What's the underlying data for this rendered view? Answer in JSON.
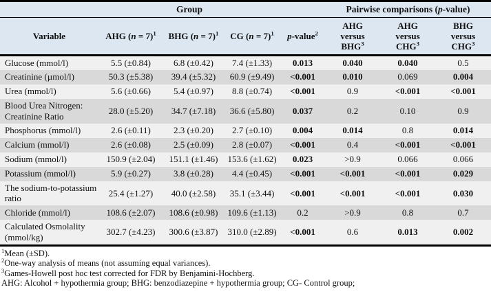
{
  "table": {
    "colors": {
      "header_bg": "#dce7f2",
      "row_light": "#f0f0f0",
      "row_dark": "#d9d9d9",
      "border": "#000000"
    },
    "header": {
      "variable_label": "Variable",
      "group_label": "Group",
      "pairwise_label": {
        "pre": "Pairwise comparisons (",
        "italic": "p",
        "post": "-value)"
      },
      "group_columns": [
        {
          "name": "AHG",
          "n_italic": "n",
          "n_eq": " = 7",
          "sup": "1"
        },
        {
          "name": "BHG",
          "n_italic": "n",
          "n_eq": " = 7",
          "sup": "1"
        },
        {
          "name": "CG",
          "n_italic": "n",
          "n_eq": " = 7",
          "sup": "1"
        }
      ],
      "p_column": {
        "italic": "p",
        "rest": "-value",
        "sup": "2"
      },
      "pairwise_columns": [
        {
          "top": "AHG",
          "mid": "versus",
          "bottom": "BHG",
          "sup": "3"
        },
        {
          "top": "AHG",
          "mid": "versus",
          "bottom": "CHG",
          "sup": "3"
        },
        {
          "top": "BHG",
          "mid": "versus",
          "bottom": "CHG",
          "sup": "3"
        }
      ]
    },
    "rows": [
      {
        "variable": "Glucose (mmol/l)",
        "ahg": "5.5 (±0.84)",
        "bhg": "6.8 (±0.42)",
        "cg": "7.4 (±1.33)",
        "p": {
          "text": "0.013",
          "bold": true
        },
        "ahg_vs_bhg": {
          "text": "0.040",
          "bold": true
        },
        "ahg_vs_chg": {
          "text": "0.040",
          "bold": true
        },
        "bhg_vs_chg": {
          "text": "0.5",
          "bold": false
        }
      },
      {
        "variable": "Creatinine (µmol/l)",
        "ahg": "50.3 (±5.38)",
        "bhg": "39.4 (±5.32)",
        "cg": "60.9 (±9.49)",
        "p": {
          "text": "<0.001",
          "bold": true
        },
        "ahg_vs_bhg": {
          "text": "0.010",
          "bold": true
        },
        "ahg_vs_chg": {
          "text": "0.069",
          "bold": false
        },
        "bhg_vs_chg": {
          "text": "0.004",
          "bold": true
        }
      },
      {
        "variable": "Urea (mmol/l)",
        "ahg": "5.6 (±0.66)",
        "bhg": "5.4 (±0.97)",
        "cg": "8.8 (±0.74)",
        "p": {
          "text": "<0.001",
          "bold": true
        },
        "ahg_vs_bhg": {
          "text": "0.9",
          "bold": false
        },
        "ahg_vs_chg": {
          "text": "<0.001",
          "bold": true
        },
        "bhg_vs_chg": {
          "text": "<0.001",
          "bold": true
        }
      },
      {
        "variable": "Blood Urea Nitrogen: Creatinine Ratio",
        "ahg": "28.0 (±5.20)",
        "bhg": "34.7 (±7.18)",
        "cg": "36.6 (±5.80)",
        "p": {
          "text": "0.037",
          "bold": true
        },
        "ahg_vs_bhg": {
          "text": "0.2",
          "bold": false
        },
        "ahg_vs_chg": {
          "text": "0.10",
          "bold": false
        },
        "bhg_vs_chg": {
          "text": "0.9",
          "bold": false
        }
      },
      {
        "variable": "Phosphorus (mmol/l)",
        "ahg": "2.6 (±0.11)",
        "bhg": "2.3 (±0.20)",
        "cg": "2.7 (±0.10)",
        "p": {
          "text": "0.004",
          "bold": true
        },
        "ahg_vs_bhg": {
          "text": "0.014",
          "bold": true
        },
        "ahg_vs_chg": {
          "text": "0.8",
          "bold": false
        },
        "bhg_vs_chg": {
          "text": "0.014",
          "bold": true
        }
      },
      {
        "variable": "Calcium (mmol/l)",
        "ahg": "2.6 (±0.08)",
        "bhg": "2.5 (±0.09)",
        "cg": "2.8 (±0.07)",
        "p": {
          "text": "<0.001",
          "bold": true
        },
        "ahg_vs_bhg": {
          "text": "0.4",
          "bold": false
        },
        "ahg_vs_chg": {
          "text": "<0.001",
          "bold": true
        },
        "bhg_vs_chg": {
          "text": "<0.001",
          "bold": true
        }
      },
      {
        "variable": "Sodium (mmol/l)",
        "ahg": "150.9 (±2.04)",
        "bhg": "151.1 (±1.46)",
        "cg": "153.6 (±1.62)",
        "p": {
          "text": "0.023",
          "bold": true
        },
        "ahg_vs_bhg": {
          "text": ">0.9",
          "bold": false
        },
        "ahg_vs_chg": {
          "text": "0.066",
          "bold": false
        },
        "bhg_vs_chg": {
          "text": "0.066",
          "bold": false
        }
      },
      {
        "variable": "Potassium (mmol/l)",
        "ahg": "5.9 (±0.27)",
        "bhg": "3.8 (±0.28)",
        "cg": "4.4 (±0.45)",
        "p": {
          "text": "<0.001",
          "bold": true
        },
        "ahg_vs_bhg": {
          "text": "<0.001",
          "bold": true
        },
        "ahg_vs_chg": {
          "text": "<0.001",
          "bold": true
        },
        "bhg_vs_chg": {
          "text": "0.029",
          "bold": true
        }
      },
      {
        "variable": "The sodium-to-potassium ratio",
        "ahg": "25.4 (±1.27)",
        "bhg": "40.0 (±2.58)",
        "cg": "35.1 (±3.44)",
        "p": {
          "text": "<0.001",
          "bold": true
        },
        "ahg_vs_bhg": {
          "text": "<0.001",
          "bold": true
        },
        "ahg_vs_chg": {
          "text": "<0.001",
          "bold": true
        },
        "bhg_vs_chg": {
          "text": "0.030",
          "bold": true
        }
      },
      {
        "variable": "Chloride (mmol/l)",
        "ahg": "108.6 (±2.07)",
        "bhg": "108.6 (±0.98)",
        "cg": "109.6 (±1.13)",
        "p": {
          "text": "0.2",
          "bold": false
        },
        "ahg_vs_bhg": {
          "text": ">0.9",
          "bold": false
        },
        "ahg_vs_chg": {
          "text": "0.8",
          "bold": false
        },
        "bhg_vs_chg": {
          "text": "0.7",
          "bold": false
        }
      },
      {
        "variable": "Calculated Osmolality (mmol/kg)",
        "ahg": "302.7 (±4.23)",
        "bhg": "300.6 (±3.87)",
        "cg": "310.0 (±2.89)",
        "p": {
          "text": "<0.001",
          "bold": true
        },
        "ahg_vs_bhg": {
          "text": "0.6",
          "bold": false
        },
        "ahg_vs_chg": {
          "text": "0.013",
          "bold": true
        },
        "bhg_vs_chg": {
          "text": "0.002",
          "bold": true
        }
      }
    ],
    "footnotes": [
      {
        "sup": "1",
        "text": "Mean (±SD)."
      },
      {
        "sup": "2",
        "text": "One-way analysis of means (not assuming equal variances)."
      },
      {
        "sup": "3",
        "text": "Games-Howell post hoc test corrected for FDR by Benjamini-Hochberg."
      },
      {
        "sup": "",
        "text": "AHG: Alcohol + hypothermia group; BHG: benzodiazepine + hypothermia group; CG- Control group;"
      }
    ]
  }
}
